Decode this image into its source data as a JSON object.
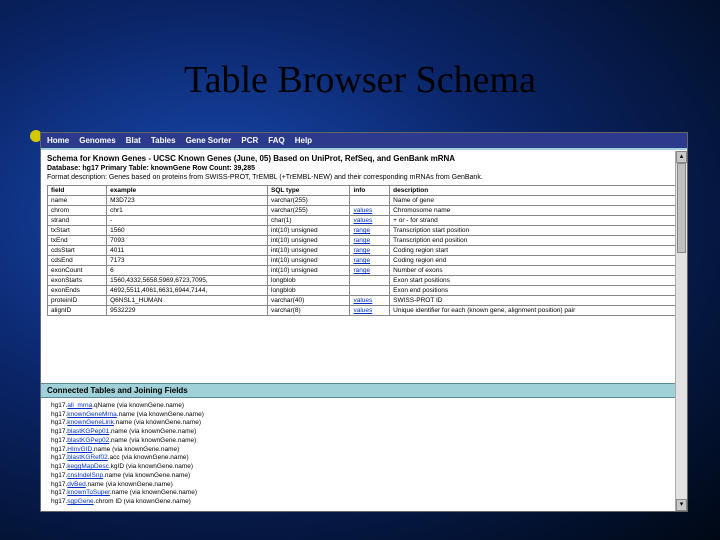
{
  "slide": {
    "title": "Table Browser Schema"
  },
  "topbar": {
    "items": [
      "Home",
      "Genomes",
      "Blat",
      "Tables",
      "Gene Sorter",
      "PCR",
      "FAQ",
      "Help"
    ]
  },
  "page": {
    "schema_title": "Schema for Known Genes - UCSC Known Genes (June, 05) Based on UniProt, RefSeq, and GenBank mRNA",
    "meta": "Database: hg17   Primary Table: knownGene   Row Count: 39,285",
    "desc": "Format description: Genes based on proteins from SWISS-PROT, TrEMBL (+TrEMBL-NEW) and their corresponding mRNAs from GenBank."
  },
  "table": {
    "columns": [
      "field",
      "example",
      "SQL type",
      "info",
      "description"
    ],
    "rows": [
      [
        "name",
        "M3D723",
        "varchar(255)",
        "",
        "Name of gene"
      ],
      [
        "chrom",
        "chr1",
        "varchar(255)",
        "values",
        "Chromosome name"
      ],
      [
        "strand",
        "-",
        "char(1)",
        "values",
        "+ or - for strand"
      ],
      [
        "txStart",
        "1560",
        "int(10) unsigned",
        "range",
        "Transcription start position"
      ],
      [
        "txEnd",
        "7093",
        "int(10) unsigned",
        "range",
        "Transcription end position"
      ],
      [
        "cdsStart",
        "4011",
        "int(10) unsigned",
        "range",
        "Coding region start"
      ],
      [
        "cdsEnd",
        "7173",
        "int(10) unsigned",
        "range",
        "Coding region end"
      ],
      [
        "exonCount",
        "6",
        "int(10) unsigned",
        "range",
        "Number of exons"
      ],
      [
        "exonStarts",
        "1560,4332,5658,5969,6723,7095,",
        "longblob",
        "",
        "Exon start positions"
      ],
      [
        "exonEnds",
        "4692,5511,4061,6631,6944,7144,",
        "longblob",
        "",
        "Exon end positions"
      ],
      [
        "proteinID",
        "Q6NSL1_HUMAN",
        "varchar(40)",
        "values",
        "SWISS-PROT ID"
      ],
      [
        "alignID",
        "9532229",
        "varchar(8)",
        "values",
        "Unique identifier for each (known gene, alignment position) pair"
      ]
    ]
  },
  "connected": {
    "title": "Connected Tables and Joining Fields",
    "items": [
      {
        "db": "hg17.",
        "tbl": "all_mrna",
        "rest": ".qName (via knownGene.name)"
      },
      {
        "db": "hg17.",
        "tbl": "knownGeneMrna",
        "rest": ".name (via knownGene.name)"
      },
      {
        "db": "hg17.",
        "tbl": "knownGeneLink",
        "rest": ".name (via knownGene.name)"
      },
      {
        "db": "hg17.",
        "tbl": "blastKGPep01",
        "rest": ".name (via knownGene.name)"
      },
      {
        "db": "hg17.",
        "tbl": "blastKGPep02",
        "rest": ".name (via knownGene.name)"
      },
      {
        "db": "hg17.",
        "tbl": "HInvGID",
        "rest": ".name (via knownGene.name)"
      },
      {
        "db": "hg17.",
        "tbl": "blastKGRef02",
        "rest": ".acc (via knownGene.name)"
      },
      {
        "db": "hg17.",
        "tbl": "keggMapDesc",
        "rest": ".kgID (via knownGene.name)"
      },
      {
        "db": "hg17.",
        "tbl": "cnsIndelSnp",
        "rest": ".name (via knownGene.name)"
      },
      {
        "db": "hg17.",
        "tbl": "dvBed",
        "rest": ".name (via knownGene.name)"
      },
      {
        "db": "hg17.",
        "tbl": "knownToSuper",
        "rest": ".name (via knownGene.name)"
      },
      {
        "db": "hg17.",
        "tbl": "sgpGene",
        "rest": ".chrom ID (via knownGene.name)"
      }
    ]
  }
}
